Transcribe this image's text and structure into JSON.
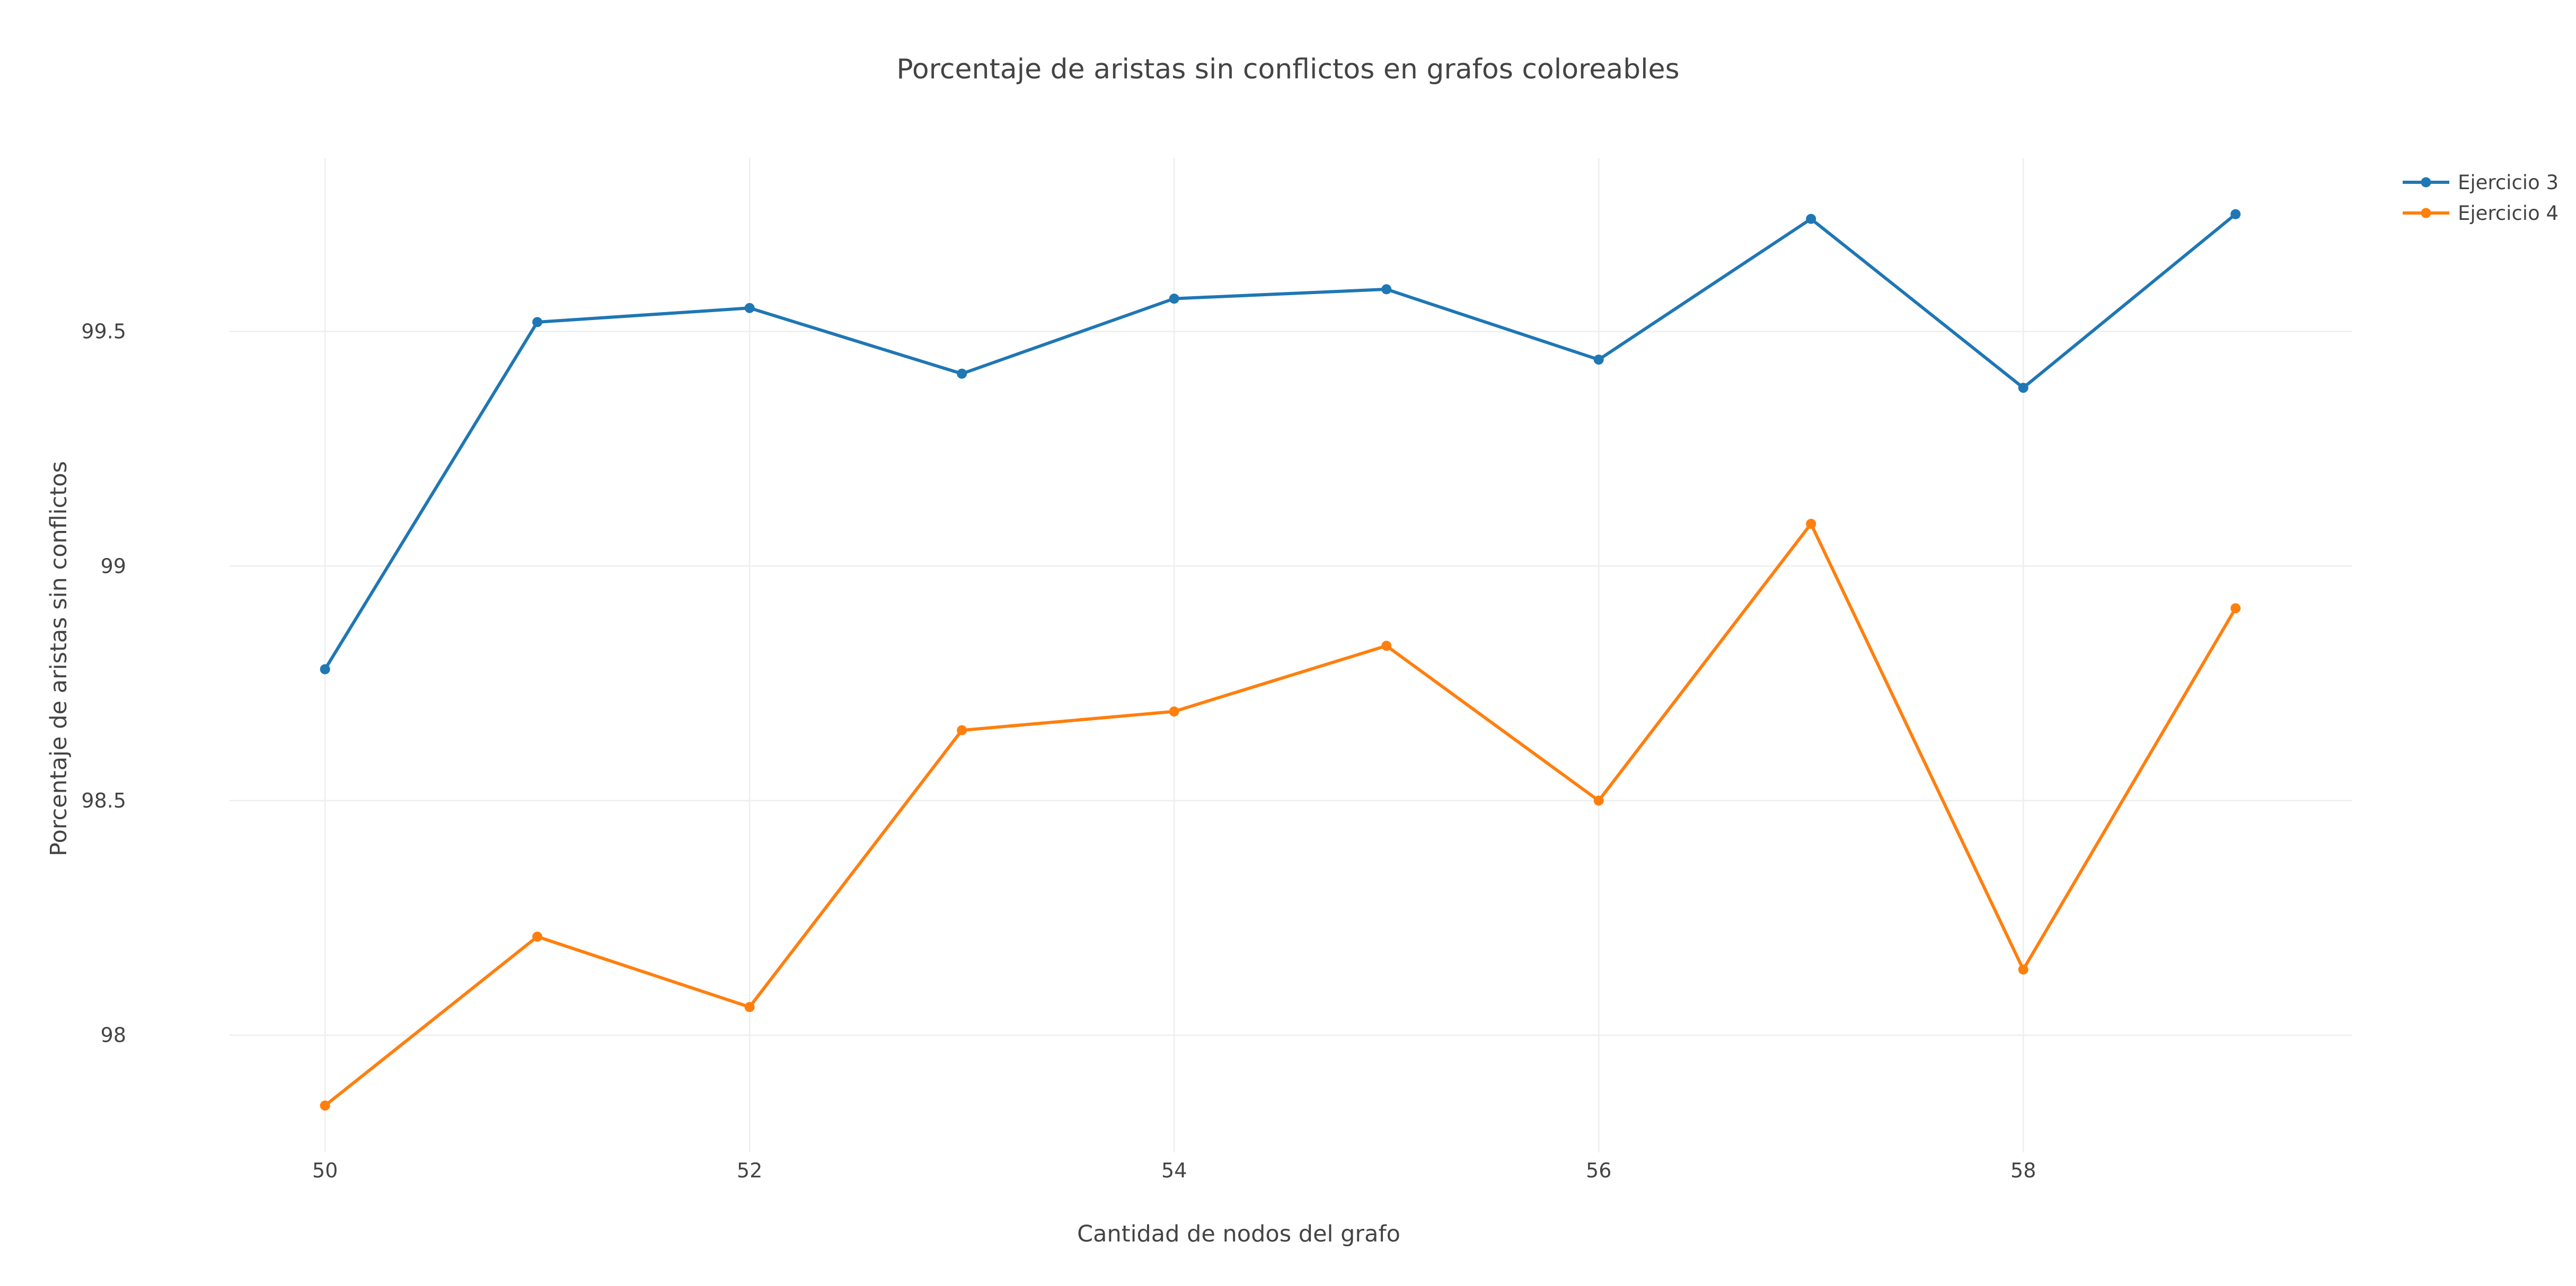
{
  "chart_data": {
    "type": "line",
    "title": "Porcentaje de aristas sin conflictos en grafos coloreables",
    "xlabel": "Cantidad de nodos del grafo",
    "ylabel": "Porcentaje de aristas sin conflictos",
    "x": [
      50,
      51,
      52,
      53,
      54,
      55,
      56,
      57,
      58,
      59
    ],
    "xlim": [
      49.55,
      59.55
    ],
    "ylim": [
      97.75,
      99.87
    ],
    "xticks": [
      50,
      52,
      54,
      56,
      58
    ],
    "yticks": [
      98,
      98.5,
      99,
      99.5
    ],
    "ytick_labels": [
      "98",
      "98.5",
      "99",
      "99.5"
    ],
    "grid": true,
    "legend_position": "top-right",
    "series": [
      {
        "name": "Ejercicio 3",
        "color": "#1f77b4",
        "values": [
          98.78,
          99.52,
          99.55,
          99.41,
          99.57,
          99.59,
          99.44,
          99.74,
          99.38,
          99.75
        ]
      },
      {
        "name": "Ejercicio 4",
        "color": "#ff7f0e",
        "values": [
          97.85,
          98.21,
          98.06,
          98.65,
          98.69,
          98.83,
          98.5,
          99.09,
          98.14,
          98.91
        ]
      }
    ]
  }
}
